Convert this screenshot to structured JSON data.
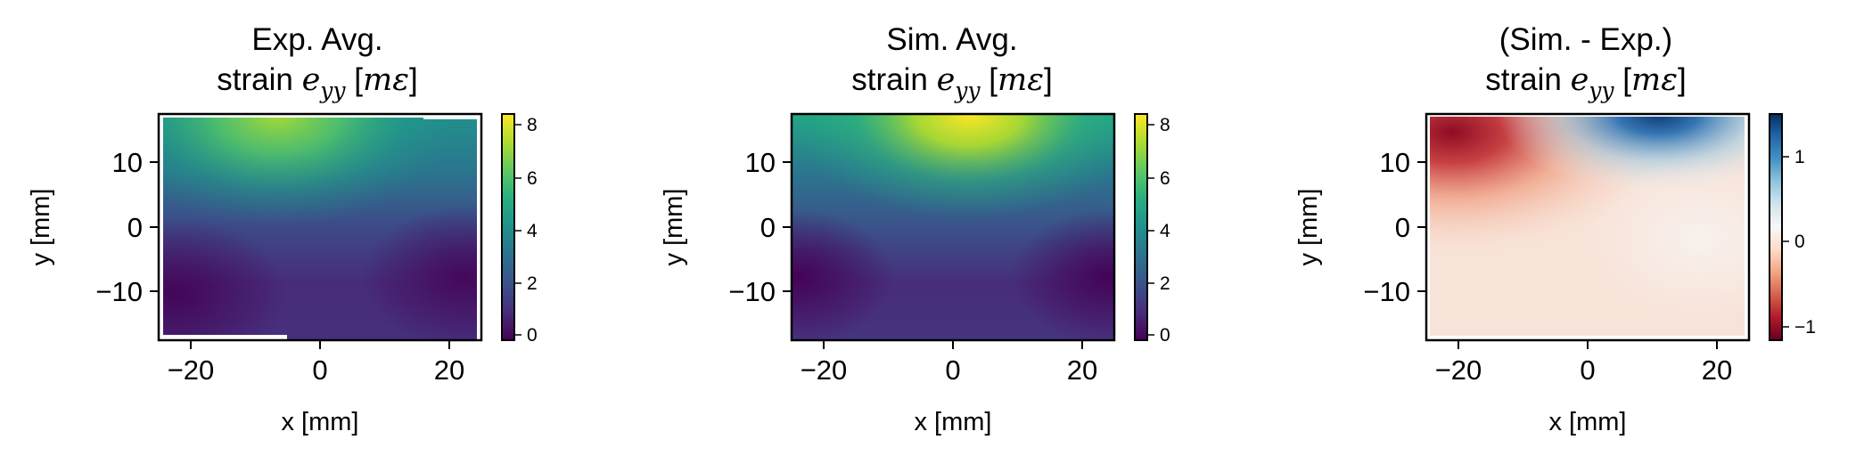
{
  "chart_data": [
    {
      "type": "heatmap",
      "title_line1": "Exp. Avg.",
      "title_line2_prefix": "strain ",
      "title_symbol": "e",
      "title_subscript": "yy",
      "title_unit_open": " [",
      "title_unit": "mε",
      "title_unit_close": "]",
      "xlabel": "x [mm]",
      "ylabel": "y [mm]",
      "xlim": [
        -25,
        25
      ],
      "ylim": [
        -17.5,
        17.5
      ],
      "xticks": [
        -20,
        0,
        20
      ],
      "yticks": [
        -10,
        0,
        10
      ],
      "xtick_labels": [
        "−20",
        "0",
        "20"
      ],
      "ytick_labels": [
        "−10",
        "0",
        "10"
      ],
      "colormap": "viridis",
      "clim": [
        -0.3,
        8.4
      ],
      "colorbar_ticks": [
        0,
        2,
        4,
        6,
        8
      ],
      "colorbar_tick_labels": [
        "0",
        "2",
        "4",
        "6",
        "8"
      ],
      "peak_value": 7.8,
      "peak_location": [
        -2,
        17
      ],
      "has_missing_edges": true
    },
    {
      "type": "heatmap",
      "title_line1": "Sim. Avg.",
      "title_line2_prefix": "strain ",
      "title_symbol": "e",
      "title_subscript": "yy",
      "title_unit_open": " [",
      "title_unit": "mε",
      "title_unit_close": "]",
      "xlabel": "x [mm]",
      "ylabel": "y [mm]",
      "xlim": [
        -25,
        25
      ],
      "ylim": [
        -17.5,
        17.5
      ],
      "xticks": [
        -20,
        0,
        20
      ],
      "yticks": [
        -10,
        0,
        10
      ],
      "xtick_labels": [
        "−20",
        "0",
        "20"
      ],
      "ytick_labels": [
        "−10",
        "0",
        "10"
      ],
      "colormap": "viridis",
      "clim": [
        -0.3,
        8.4
      ],
      "colorbar_ticks": [
        0,
        2,
        4,
        6,
        8
      ],
      "colorbar_tick_labels": [
        "0",
        "2",
        "4",
        "6",
        "8"
      ],
      "peak_value": 8.3,
      "peak_location": [
        2,
        17.5
      ],
      "has_missing_edges": false
    },
    {
      "type": "heatmap",
      "title_line1": "(Sim. - Exp.)",
      "title_line2_prefix": "strain ",
      "title_symbol": "e",
      "title_subscript": "yy",
      "title_unit_open": " [",
      "title_unit": "mε",
      "title_unit_close": "]",
      "xlabel": "x [mm]",
      "ylabel": "y [mm]",
      "xlim": [
        -25,
        25
      ],
      "ylim": [
        -17.5,
        17.5
      ],
      "xticks": [
        -20,
        0,
        20
      ],
      "yticks": [
        -10,
        0,
        10
      ],
      "xtick_labels": [
        "−20",
        "0",
        "20"
      ],
      "ytick_labels": [
        "−10",
        "0",
        "10"
      ],
      "colormap": "RdBu",
      "clim": [
        -1.5,
        1.5
      ],
      "colorbar_ticks": [
        -1,
        0,
        1
      ],
      "colorbar_tick_labels": [
        "−1",
        "0",
        "1"
      ],
      "min_value": -1.3,
      "min_location": [
        -20,
        15
      ],
      "max_value": 1.4,
      "max_location": [
        10,
        17
      ],
      "has_missing_edges": true
    }
  ]
}
